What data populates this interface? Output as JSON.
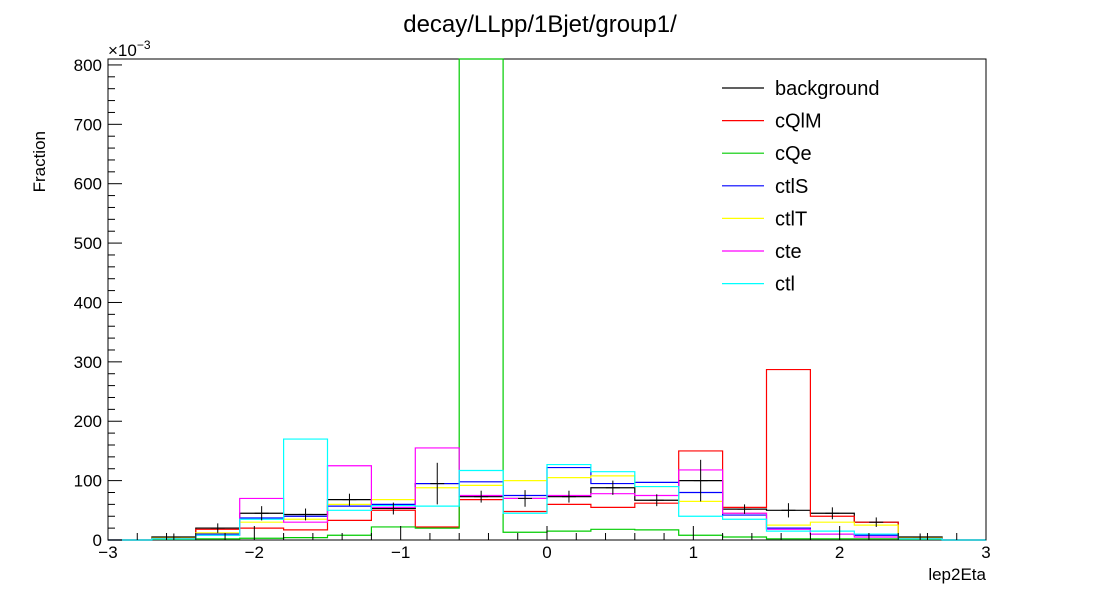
{
  "chart_data": {
    "type": "histogram",
    "title": "decay/LLpp/1Bjet/group1/",
    "xlabel": "lep2Eta",
    "ylabel": "Fraction",
    "y_multiplier": "×10",
    "y_multiplier_exp": "−3",
    "xlim": [
      -3,
      3
    ],
    "ylim": [
      0,
      810
    ],
    "x_ticks": [
      -3,
      -2,
      -1,
      0,
      1,
      2,
      3
    ],
    "x_tick_labels": [
      "−3",
      "−2",
      "−1",
      "0",
      "1",
      "2",
      "3"
    ],
    "y_ticks": [
      0,
      100,
      200,
      300,
      400,
      500,
      600,
      700,
      800
    ],
    "y_tick_labels": [
      "0",
      "100",
      "200",
      "300",
      "400",
      "500",
      "600",
      "700",
      "800"
    ],
    "bin_edges": [
      -3.0,
      -2.7,
      -2.4,
      -2.1,
      -1.8,
      -1.5,
      -1.2,
      -0.9,
      -0.6,
      -0.3,
      0.0,
      0.3,
      0.6,
      0.9,
      1.2,
      1.5,
      1.8,
      2.1,
      2.4,
      2.7,
      3.0
    ],
    "legend_position": "top-right",
    "series": [
      {
        "name": "background",
        "color": "#000000",
        "error_bars": true,
        "values": [
          0,
          5,
          20,
          45,
          43,
          68,
          53,
          95,
          73,
          70,
          73,
          88,
          67,
          100,
          52,
          50,
          45,
          30,
          5,
          0
        ],
        "errors": [
          0,
          6,
          8,
          12,
          10,
          10,
          10,
          35,
          10,
          14,
          10,
          12,
          10,
          35,
          8,
          12,
          10,
          8,
          6,
          0
        ]
      },
      {
        "name": "cQlM",
        "color": "#ff0000",
        "error_bars": false,
        "values": [
          0,
          3,
          18,
          20,
          17,
          33,
          50,
          22,
          68,
          48,
          60,
          55,
          62,
          150,
          55,
          287,
          40,
          30,
          3,
          0
        ]
      },
      {
        "name": "cQe",
        "color": "#00cc00",
        "error_bars": false,
        "values": [
          0,
          1,
          2,
          3,
          4,
          8,
          22,
          20,
          810,
          13,
          15,
          18,
          17,
          8,
          5,
          2,
          2,
          2,
          1,
          0
        ]
      },
      {
        "name": "ctlS",
        "color": "#0000ff",
        "error_bars": false,
        "values": [
          0,
          2,
          10,
          37,
          40,
          57,
          60,
          95,
          98,
          75,
          122,
          95,
          97,
          80,
          42,
          20,
          10,
          8,
          2,
          0
        ]
      },
      {
        "name": "ctlT",
        "color": "#ffff00",
        "error_bars": false,
        "values": [
          0,
          3,
          12,
          30,
          35,
          60,
          68,
          88,
          92,
          100,
          105,
          108,
          90,
          65,
          45,
          25,
          30,
          25,
          3,
          0
        ]
      },
      {
        "name": "cte",
        "color": "#ff00ff",
        "error_bars": false,
        "values": [
          0,
          2,
          8,
          70,
          30,
          125,
          55,
          155,
          75,
          70,
          75,
          78,
          75,
          118,
          45,
          18,
          10,
          5,
          2,
          0
        ]
      },
      {
        "name": "ctl",
        "color": "#00ffff",
        "error_bars": false,
        "values": [
          0,
          2,
          8,
          35,
          170,
          50,
          58,
          57,
          117,
          45,
          127,
          115,
          90,
          40,
          35,
          15,
          15,
          10,
          2,
          0
        ]
      }
    ]
  }
}
